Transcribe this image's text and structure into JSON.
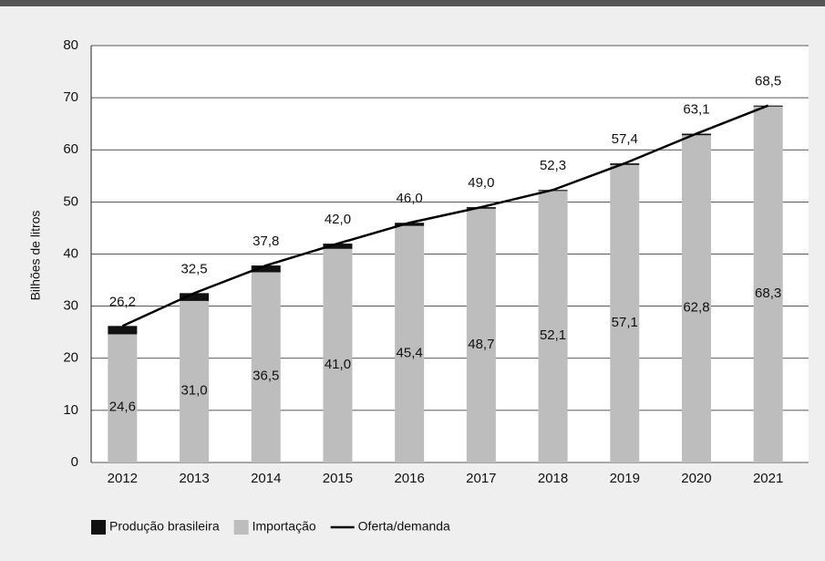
{
  "chart_data": {
    "type": "stacked-bar-line",
    "y_label": "Bilhões de litros",
    "categories": [
      "2012",
      "2013",
      "2014",
      "2015",
      "2016",
      "2017",
      "2018",
      "2019",
      "2020",
      "2021"
    ],
    "series": [
      {
        "name": "Produção brasileira",
        "color": "#111111",
        "values": [
          1.6,
          1.5,
          1.3,
          1.0,
          0.6,
          0.3,
          0.2,
          0.3,
          0.3,
          0.2
        ]
      },
      {
        "name": "Importação",
        "color": "#bdbdbd",
        "values": [
          24.6,
          31.0,
          36.5,
          41.0,
          45.4,
          48.7,
          52.1,
          57.1,
          62.8,
          68.3
        ],
        "value_labels": [
          "24,6",
          "31,0",
          "36,5",
          "41,0",
          "45,4",
          "48,7",
          "52,1",
          "57,1",
          "62,8",
          "68,3"
        ]
      },
      {
        "name": "Oferta/demanda",
        "color": "#000000",
        "kind": "line",
        "values": [
          26.2,
          32.5,
          37.8,
          42.0,
          46.0,
          49.0,
          52.3,
          57.4,
          63.1,
          68.5
        ],
        "value_labels": [
          "26,2",
          "32,5",
          "37,8",
          "42,0",
          "46,0",
          "49,0",
          "52,3",
          "57,4",
          "63,1",
          "68,5"
        ]
      }
    ],
    "ylim": [
      0,
      80
    ],
    "yticks": [
      0,
      10,
      20,
      30,
      40,
      50,
      60,
      70,
      80
    ],
    "grid": true,
    "legend": "bottom"
  }
}
